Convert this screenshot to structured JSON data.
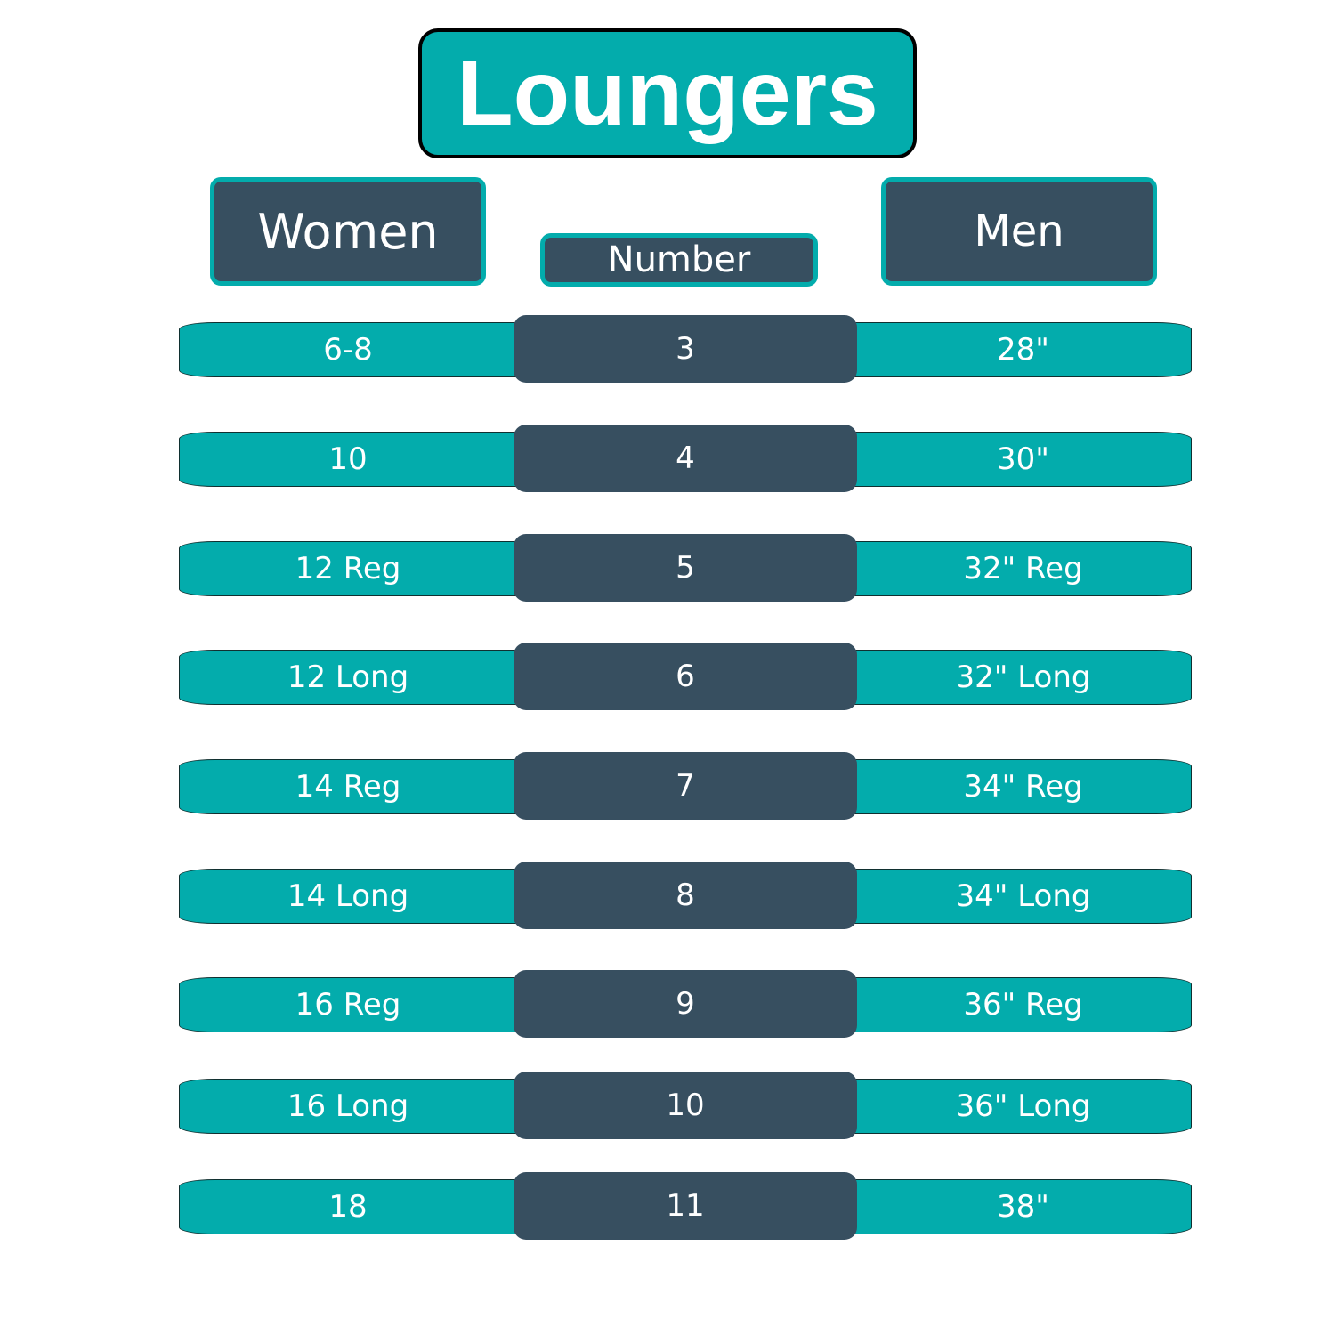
{
  "title": "Loungers",
  "headers": {
    "women": "Women",
    "number": "Number",
    "men": "Men"
  },
  "colors": {
    "teal": "#03acac",
    "slate": "#374f60"
  },
  "rows": [
    {
      "women": "6-8",
      "number": "3",
      "men": "28\""
    },
    {
      "women": "10",
      "number": "4",
      "men": "30\""
    },
    {
      "women": "12 Reg",
      "number": "5",
      "men": "32\" Reg"
    },
    {
      "women": "12 Long",
      "number": "6",
      "men": "32\" Long"
    },
    {
      "women": "14 Reg",
      "number": "7",
      "men": "34\" Reg"
    },
    {
      "women": "14 Long",
      "number": "8",
      "men": "34\" Long"
    },
    {
      "women": "16 Reg",
      "number": "9",
      "men": "36\" Reg"
    },
    {
      "women": "16 Long",
      "number": "10",
      "men": "36\" Long"
    },
    {
      "women": "18",
      "number": "11",
      "men": "38\""
    }
  ]
}
